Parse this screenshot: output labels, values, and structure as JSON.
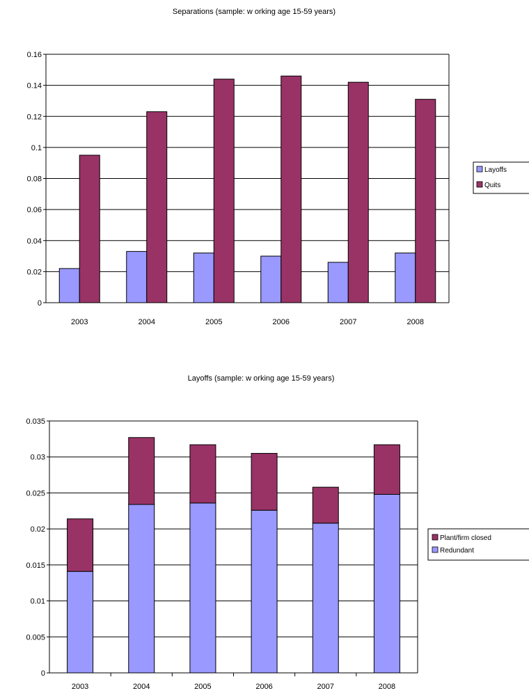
{
  "chart_data": [
    {
      "type": "bar",
      "title": "Separations (sample: w orking age 15-59 years)",
      "xlabel": "",
      "ylabel": "",
      "categories": [
        "2003",
        "2004",
        "2005",
        "2006",
        "2007",
        "2008"
      ],
      "series": [
        {
          "name": "Layoffs",
          "values": [
            0.022,
            0.033,
            0.032,
            0.03,
            0.026,
            0.032
          ],
          "color": "#9999ff"
        },
        {
          "name": "Quits",
          "values": [
            0.095,
            0.123,
            0.144,
            0.146,
            0.142,
            0.131
          ],
          "color": "#993366"
        }
      ],
      "ylim": [
        0,
        0.16
      ],
      "yticks": [
        "0",
        "0.02",
        "0.04",
        "0.06",
        "0.08",
        "0.1",
        "0.12",
        "0.14",
        "0.16"
      ],
      "stacked": false,
      "grid": true,
      "legend_position": "right"
    },
    {
      "type": "bar",
      "title": "Layoffs (sample: w orking age 15-59 years)",
      "xlabel": "",
      "ylabel": "",
      "categories": [
        "2003",
        "2004",
        "2005",
        "2006",
        "2007",
        "2008"
      ],
      "series": [
        {
          "name": "Redundant",
          "values": [
            0.0141,
            0.0234,
            0.0236,
            0.0226,
            0.0208,
            0.0248
          ],
          "color": "#9999ff"
        },
        {
          "name": "Plant/firm closed",
          "values": [
            0.0073,
            0.0093,
            0.0081,
            0.0079,
            0.005,
            0.0069
          ],
          "color": "#993366"
        }
      ],
      "legend_order": [
        "Plant/firm closed",
        "Redundant"
      ],
      "ylim": [
        0,
        0.035
      ],
      "yticks": [
        "0",
        "0.005",
        "0.01",
        "0.015",
        "0.02",
        "0.025",
        "0.03",
        "0.035"
      ],
      "stacked": true,
      "grid": true,
      "legend_position": "right"
    }
  ]
}
